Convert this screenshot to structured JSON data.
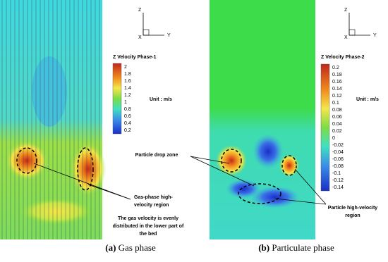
{
  "panels": [
    {
      "axes": {
        "z": "Z",
        "y": "Y",
        "x": "X"
      },
      "colorbar": {
        "title": "Z Velocity Phase-1",
        "ticks": [
          "2",
          "1.8",
          "1.6",
          "1.4",
          "1.2",
          "1",
          "0.8",
          "0.6",
          "0.4",
          "0.2"
        ],
        "unit": "Unit : m/s"
      },
      "annotations": [
        {
          "lines": [
            "Gas-phase high-",
            "velocity region"
          ]
        },
        {
          "lines": [
            "The gas velocity is evenly",
            "distributed in the lower part of",
            "the bed"
          ]
        }
      ],
      "caption": {
        "label": "(a)",
        "text": "Gas phase"
      }
    },
    {
      "axes": {
        "z": "Z",
        "y": "Y",
        "x": "X"
      },
      "colorbar": {
        "title": "Z Velocity Phase-2",
        "ticks": [
          "0.2",
          "0.18",
          "0.16",
          "0.14",
          "0.12",
          "0.1",
          "0.08",
          "0.06",
          "0.04",
          "0.02",
          "0",
          "-0.02",
          "-0.04",
          "-0.06",
          "-0.08",
          "-0.1",
          "-0.12",
          "-0.14"
        ],
        "unit": "Unit : m/s"
      },
      "annotations": [
        {
          "lines": [
            "Particle drop zone"
          ]
        },
        {
          "lines": [
            "Particle high-velocity",
            "region"
          ]
        }
      ],
      "caption": {
        "label": "(b)",
        "text": "Particulate phase"
      }
    }
  ]
}
